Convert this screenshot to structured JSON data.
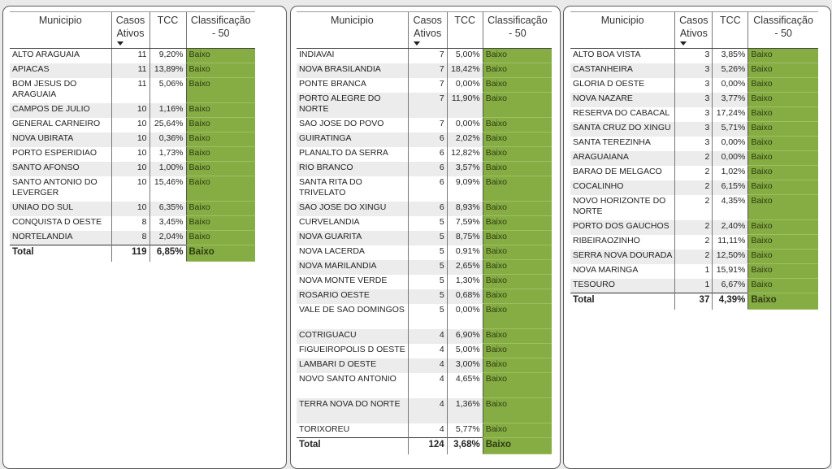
{
  "headers": {
    "municipio": "Municipio",
    "casos": "Casos Ativos",
    "tcc": "TCC",
    "classificacao": "Classificação - 50"
  },
  "colors": {
    "baixo": "#86ad44"
  },
  "tables": [
    {
      "rows": [
        [
          "ALTO ARAGUAIA",
          "11",
          "9,20%",
          "Baixo"
        ],
        [
          "APIACAS",
          "11",
          "13,89%",
          "Baixo"
        ],
        [
          "BOM JESUS DO ARAGUAIA",
          "11",
          "5,06%",
          "Baixo"
        ],
        [
          "CAMPOS DE JULIO",
          "10",
          "1,16%",
          "Baixo"
        ],
        [
          "GENERAL CARNEIRO",
          "10",
          "25,64%",
          "Baixo"
        ],
        [
          "NOVA UBIRATA",
          "10",
          "0,36%",
          "Baixo"
        ],
        [
          "PORTO ESPERIDIAO",
          "10",
          "1,73%",
          "Baixo"
        ],
        [
          "SANTO AFONSO",
          "10",
          "1,00%",
          "Baixo"
        ],
        [
          "SANTO ANTONIO DO LEVERGER",
          "10",
          "15,46%",
          "Baixo"
        ],
        [
          "UNIAO DO SUL",
          "10",
          "6,35%",
          "Baixo"
        ],
        [
          "CONQUISTA D OESTE",
          "8",
          "3,45%",
          "Baixo"
        ],
        [
          "NORTELANDIA",
          "8",
          "2,04%",
          "Baixo"
        ]
      ],
      "total": [
        "Total",
        "119",
        "6,85%",
        "Baixo"
      ]
    },
    {
      "rows": [
        [
          "INDIAVAI",
          "7",
          "5,00%",
          "Baixo"
        ],
        [
          "NOVA BRASILANDIA",
          "7",
          "18,42%",
          "Baixo"
        ],
        [
          "PONTE BRANCA",
          "7",
          "0,00%",
          "Baixo"
        ],
        [
          "PORTO ALEGRE DO NORTE",
          "7",
          "11,90%",
          "Baixo"
        ],
        [
          "SAO JOSE DO POVO",
          "7",
          "0,00%",
          "Baixo"
        ],
        [
          "GUIRATINGA",
          "6",
          "2,02%",
          "Baixo"
        ],
        [
          "PLANALTO DA SERRA",
          "6",
          "12,82%",
          "Baixo"
        ],
        [
          "RIO BRANCO",
          "6",
          "3,57%",
          "Baixo"
        ],
        [
          "SANTA RITA DO TRIVELATO",
          "6",
          "9,09%",
          "Baixo"
        ],
        [
          "SAO JOSE DO XINGU",
          "6",
          "8,93%",
          "Baixo"
        ],
        [
          "CURVELANDIA",
          "5",
          "7,59%",
          "Baixo"
        ],
        [
          "NOVA GUARITA",
          "5",
          "8,75%",
          "Baixo"
        ],
        [
          "NOVA LACERDA",
          "5",
          "0,91%",
          "Baixo"
        ],
        [
          "NOVA MARILANDIA",
          "5",
          "2,65%",
          "Baixo"
        ],
        [
          "NOVA MONTE VERDE",
          "5",
          "1,30%",
          "Baixo"
        ],
        [
          "ROSARIO OESTE",
          "5",
          "0,68%",
          "Baixo"
        ],
        [
          "VALE DE SAO DOMINGOS",
          "5",
          "0,00%",
          "Baixo"
        ],
        [
          "COTRIGUACU",
          "4",
          "6,90%",
          "Baixo"
        ],
        [
          "FIGUEIROPOLIS D OESTE",
          "4",
          "5,00%",
          "Baixo"
        ],
        [
          "LAMBARI D OESTE",
          "4",
          "3,00%",
          "Baixo"
        ],
        [
          "NOVO SANTO ANTONIO",
          "4",
          "4,65%",
          "Baixo"
        ],
        [
          "TERRA NOVA DO NORTE",
          "4",
          "1,36%",
          "Baixo"
        ],
        [
          "TORIXOREU",
          "4",
          "5,77%",
          "Baixo"
        ]
      ],
      "total": [
        "Total",
        "124",
        "3,68%",
        "Baixo"
      ]
    },
    {
      "rows": [
        [
          "ALTO BOA VISTA",
          "3",
          "3,85%",
          "Baixo"
        ],
        [
          "CASTANHEIRA",
          "3",
          "5,26%",
          "Baixo"
        ],
        [
          "GLORIA D OESTE",
          "3",
          "0,00%",
          "Baixo"
        ],
        [
          "NOVA NAZARE",
          "3",
          "3,77%",
          "Baixo"
        ],
        [
          "RESERVA DO CABACAL",
          "3",
          "17,24%",
          "Baixo"
        ],
        [
          "SANTA CRUZ DO XINGU",
          "3",
          "5,71%",
          "Baixo"
        ],
        [
          "SANTA TEREZINHA",
          "3",
          "0,00%",
          "Baixo"
        ],
        [
          "ARAGUAIANA",
          "2",
          "0,00%",
          "Baixo"
        ],
        [
          "BARAO DE MELGACO",
          "2",
          "1,02%",
          "Baixo"
        ],
        [
          "COCALINHO",
          "2",
          "6,15%",
          "Baixo"
        ],
        [
          "NOVO HORIZONTE DO NORTE",
          "2",
          "4,35%",
          "Baixo"
        ],
        [
          "PORTO DOS GAUCHOS",
          "2",
          "2,40%",
          "Baixo"
        ],
        [
          "RIBEIRAOZINHO",
          "2",
          "11,11%",
          "Baixo"
        ],
        [
          "SERRA NOVA DOURADA",
          "2",
          "12,50%",
          "Baixo"
        ],
        [
          "NOVA MARINGA",
          "1",
          "15,91%",
          "Baixo"
        ],
        [
          "TESOURO",
          "1",
          "6,67%",
          "Baixo"
        ]
      ],
      "total": [
        "Total",
        "37",
        "4,39%",
        "Baixo"
      ]
    }
  ]
}
